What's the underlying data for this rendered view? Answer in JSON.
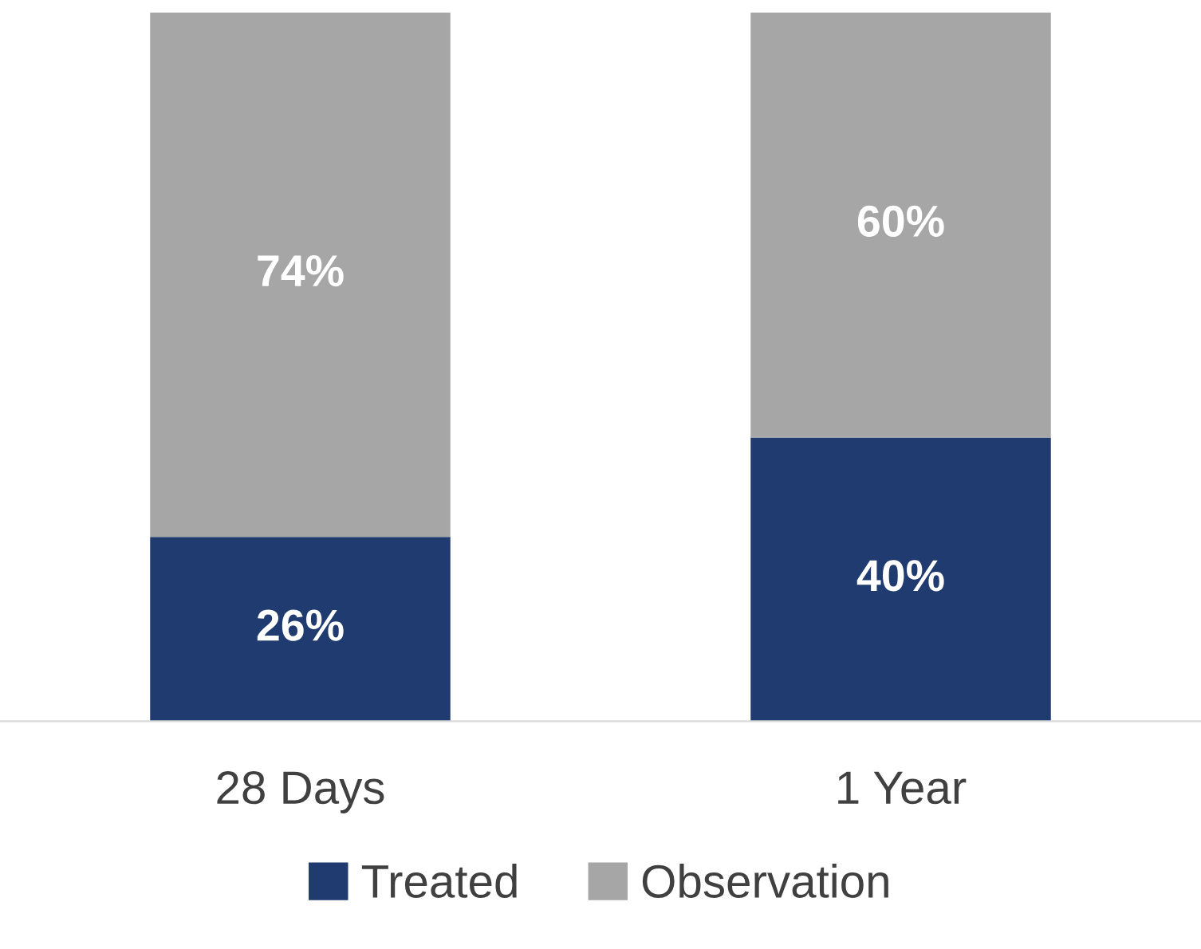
{
  "chart_data": {
    "type": "bar",
    "stacked": true,
    "categories": [
      "28 Days",
      "1 Year"
    ],
    "series": [
      {
        "name": "Treated",
        "color": "#1f3b70",
        "values": [
          26,
          40
        ],
        "value_labels": [
          "26%",
          "40%"
        ]
      },
      {
        "name": "Observation",
        "color": "#a6a6a6",
        "values": [
          74,
          60
        ],
        "value_labels": [
          "74%",
          "60%"
        ]
      }
    ],
    "ylim": [
      0,
      100
    ],
    "tick_labels": "x",
    "grid": false,
    "legend": "bottom"
  }
}
